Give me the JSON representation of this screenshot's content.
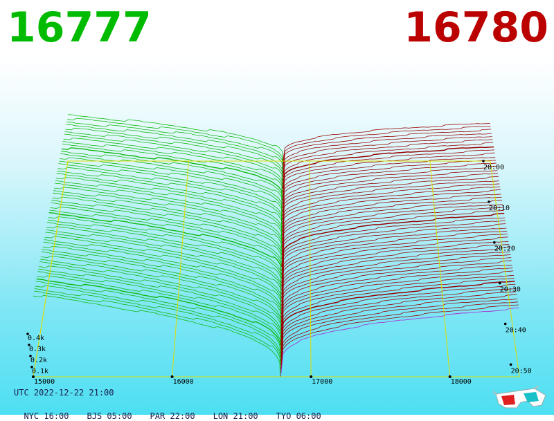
{
  "header": {
    "bid_price": "16777",
    "ask_price": "16780",
    "bid_color": "#00bb00",
    "ask_color": "#bb0000"
  },
  "chart_data": {
    "type": "area",
    "title": "",
    "x_axis": {
      "label": "",
      "ticks": [
        "15000",
        "16000",
        "17000",
        "18000"
      ],
      "range": [
        15000,
        18500
      ]
    },
    "depth_axis": {
      "label": "",
      "ticks": [
        "0.1k",
        "0.2k",
        "0.3k",
        "0.4k"
      ],
      "range": [
        0,
        450
      ]
    },
    "time_axis": {
      "label": "",
      "ticks": [
        "20:00",
        "20:10",
        "20:20",
        "20:30",
        "20:40",
        "20:50"
      ]
    },
    "mid_price": 16778,
    "snapshots": 56,
    "series": [
      {
        "name": "",
        "side": "bid",
        "color": "#11bb11",
        "max_cumulative_depth": 440
      },
      {
        "name": "",
        "side": "ask",
        "color": "#990000",
        "max_cumulative_depth": 370
      }
    ],
    "grid": true
  },
  "footer": {
    "utc": "UTC 2022-12-22 21:00",
    "zones": [
      {
        "city": "NYC",
        "time": "16:00"
      },
      {
        "city": "BJS",
        "time": "05:00"
      },
      {
        "city": "PAR",
        "time": "22:00"
      },
      {
        "city": "LON",
        "time": "21:00"
      },
      {
        "city": "TYO",
        "time": "06:00"
      }
    ]
  },
  "icons": {
    "glasses": "3d-glasses-icon"
  }
}
